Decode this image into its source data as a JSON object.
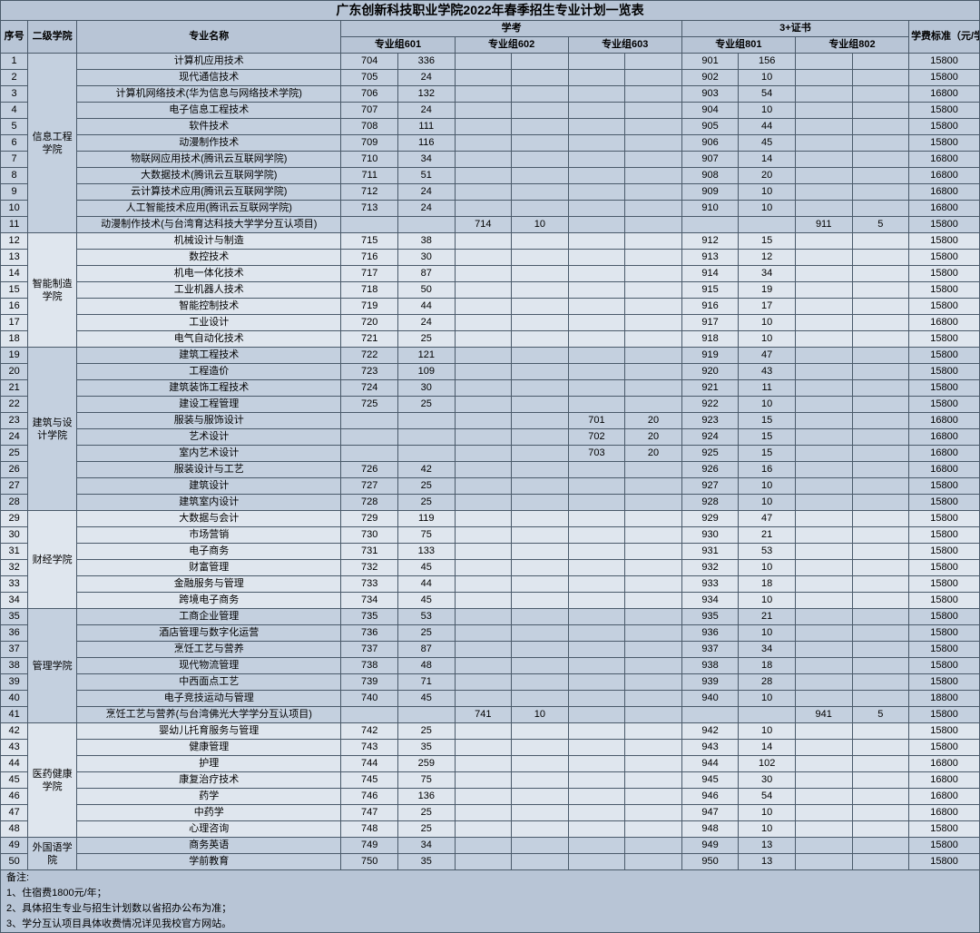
{
  "title": "广东创新科技职业学院2022年春季招生专业计划一览表",
  "headers": {
    "seq": "序号",
    "college": "二级学院",
    "major": "专业名称",
    "xuekao": "学考",
    "cert": "3+证书",
    "fee": "学费标准（元/学年）",
    "g601": "专业组601",
    "g602": "专业组602",
    "g603": "专业组603",
    "g801": "专业组801",
    "g802": "专业组802"
  },
  "colleges": [
    {
      "name": "信息工程学院",
      "shade": "shade-a",
      "rows": [
        {
          "n": "1",
          "m": "计算机应用技术",
          "a": "704",
          "b": "336",
          "c": "",
          "d": "",
          "e": "",
          "f": "",
          "g": "901",
          "h": "156",
          "i": "",
          "j": "",
          "fee": "15800"
        },
        {
          "n": "2",
          "m": "现代通信技术",
          "a": "705",
          "b": "24",
          "c": "",
          "d": "",
          "e": "",
          "f": "",
          "g": "902",
          "h": "10",
          "i": "",
          "j": "",
          "fee": "15800"
        },
        {
          "n": "3",
          "m": "计算机网络技术(华为信息与网络技术学院)",
          "a": "706",
          "b": "132",
          "c": "",
          "d": "",
          "e": "",
          "f": "",
          "g": "903",
          "h": "54",
          "i": "",
          "j": "",
          "fee": "16800"
        },
        {
          "n": "4",
          "m": "电子信息工程技术",
          "a": "707",
          "b": "24",
          "c": "",
          "d": "",
          "e": "",
          "f": "",
          "g": "904",
          "h": "10",
          "i": "",
          "j": "",
          "fee": "15800"
        },
        {
          "n": "5",
          "m": "软件技术",
          "a": "708",
          "b": "111",
          "c": "",
          "d": "",
          "e": "",
          "f": "",
          "g": "905",
          "h": "44",
          "i": "",
          "j": "",
          "fee": "15800"
        },
        {
          "n": "6",
          "m": "动漫制作技术",
          "a": "709",
          "b": "116",
          "c": "",
          "d": "",
          "e": "",
          "f": "",
          "g": "906",
          "h": "45",
          "i": "",
          "j": "",
          "fee": "15800"
        },
        {
          "n": "7",
          "m": "物联网应用技术(腾讯云互联网学院)",
          "a": "710",
          "b": "34",
          "c": "",
          "d": "",
          "e": "",
          "f": "",
          "g": "907",
          "h": "14",
          "i": "",
          "j": "",
          "fee": "16800"
        },
        {
          "n": "8",
          "m": "大数据技术(腾讯云互联网学院)",
          "a": "711",
          "b": "51",
          "c": "",
          "d": "",
          "e": "",
          "f": "",
          "g": "908",
          "h": "20",
          "i": "",
          "j": "",
          "fee": "16800"
        },
        {
          "n": "9",
          "m": "云计算技术应用(腾讯云互联网学院)",
          "a": "712",
          "b": "24",
          "c": "",
          "d": "",
          "e": "",
          "f": "",
          "g": "909",
          "h": "10",
          "i": "",
          "j": "",
          "fee": "16800"
        },
        {
          "n": "10",
          "m": "人工智能技术应用(腾讯云互联网学院)",
          "a": "713",
          "b": "24",
          "c": "",
          "d": "",
          "e": "",
          "f": "",
          "g": "910",
          "h": "10",
          "i": "",
          "j": "",
          "fee": "16800"
        },
        {
          "n": "11",
          "m": "动漫制作技术(与台湾育达科技大学学分互认项目)",
          "a": "",
          "b": "",
          "c": "714",
          "d": "10",
          "e": "",
          "f": "",
          "g": "",
          "h": "",
          "i": "911",
          "j": "5",
          "fee": "15800"
        }
      ]
    },
    {
      "name": "智能制造学院",
      "shade": "shade-c",
      "rows": [
        {
          "n": "12",
          "m": "机械设计与制造",
          "a": "715",
          "b": "38",
          "c": "",
          "d": "",
          "e": "",
          "f": "",
          "g": "912",
          "h": "15",
          "i": "",
          "j": "",
          "fee": "15800"
        },
        {
          "n": "13",
          "m": "数控技术",
          "a": "716",
          "b": "30",
          "c": "",
          "d": "",
          "e": "",
          "f": "",
          "g": "913",
          "h": "12",
          "i": "",
          "j": "",
          "fee": "15800"
        },
        {
          "n": "14",
          "m": "机电一体化技术",
          "a": "717",
          "b": "87",
          "c": "",
          "d": "",
          "e": "",
          "f": "",
          "g": "914",
          "h": "34",
          "i": "",
          "j": "",
          "fee": "15800"
        },
        {
          "n": "15",
          "m": "工业机器人技术",
          "a": "718",
          "b": "50",
          "c": "",
          "d": "",
          "e": "",
          "f": "",
          "g": "915",
          "h": "19",
          "i": "",
          "j": "",
          "fee": "15800"
        },
        {
          "n": "16",
          "m": "智能控制技术",
          "a": "719",
          "b": "44",
          "c": "",
          "d": "",
          "e": "",
          "f": "",
          "g": "916",
          "h": "17",
          "i": "",
          "j": "",
          "fee": "15800"
        },
        {
          "n": "17",
          "m": "工业设计",
          "a": "720",
          "b": "24",
          "c": "",
          "d": "",
          "e": "",
          "f": "",
          "g": "917",
          "h": "10",
          "i": "",
          "j": "",
          "fee": "16800"
        },
        {
          "n": "18",
          "m": "电气自动化技术",
          "a": "721",
          "b": "25",
          "c": "",
          "d": "",
          "e": "",
          "f": "",
          "g": "918",
          "h": "10",
          "i": "",
          "j": "",
          "fee": "15800"
        }
      ]
    },
    {
      "name": "建筑与设计学院",
      "shade": "shade-a",
      "rows": [
        {
          "n": "19",
          "m": "建筑工程技术",
          "a": "722",
          "b": "121",
          "c": "",
          "d": "",
          "e": "",
          "f": "",
          "g": "919",
          "h": "47",
          "i": "",
          "j": "",
          "fee": "15800"
        },
        {
          "n": "20",
          "m": "工程造价",
          "a": "723",
          "b": "109",
          "c": "",
          "d": "",
          "e": "",
          "f": "",
          "g": "920",
          "h": "43",
          "i": "",
          "j": "",
          "fee": "15800"
        },
        {
          "n": "21",
          "m": "建筑装饰工程技术",
          "a": "724",
          "b": "30",
          "c": "",
          "d": "",
          "e": "",
          "f": "",
          "g": "921",
          "h": "11",
          "i": "",
          "j": "",
          "fee": "15800"
        },
        {
          "n": "22",
          "m": "建设工程管理",
          "a": "725",
          "b": "25",
          "c": "",
          "d": "",
          "e": "",
          "f": "",
          "g": "922",
          "h": "10",
          "i": "",
          "j": "",
          "fee": "15800"
        },
        {
          "n": "23",
          "m": "服装与服饰设计",
          "a": "",
          "b": "",
          "c": "",
          "d": "",
          "e": "701",
          "f": "20",
          "g": "923",
          "h": "15",
          "i": "",
          "j": "",
          "fee": "16800"
        },
        {
          "n": "24",
          "m": "艺术设计",
          "a": "",
          "b": "",
          "c": "",
          "d": "",
          "e": "702",
          "f": "20",
          "g": "924",
          "h": "15",
          "i": "",
          "j": "",
          "fee": "16800"
        },
        {
          "n": "25",
          "m": "室内艺术设计",
          "a": "",
          "b": "",
          "c": "",
          "d": "",
          "e": "703",
          "f": "20",
          "g": "925",
          "h": "15",
          "i": "",
          "j": "",
          "fee": "16800"
        },
        {
          "n": "26",
          "m": "服装设计与工艺",
          "a": "726",
          "b": "42",
          "c": "",
          "d": "",
          "e": "",
          "f": "",
          "g": "926",
          "h": "16",
          "i": "",
          "j": "",
          "fee": "16800"
        },
        {
          "n": "27",
          "m": "建筑设计",
          "a": "727",
          "b": "25",
          "c": "",
          "d": "",
          "e": "",
          "f": "",
          "g": "927",
          "h": "10",
          "i": "",
          "j": "",
          "fee": "15800"
        },
        {
          "n": "28",
          "m": "建筑室内设计",
          "a": "728",
          "b": "25",
          "c": "",
          "d": "",
          "e": "",
          "f": "",
          "g": "928",
          "h": "10",
          "i": "",
          "j": "",
          "fee": "15800"
        }
      ]
    },
    {
      "name": "财经学院",
      "shade": "shade-c",
      "rows": [
        {
          "n": "29",
          "m": "大数据与会计",
          "a": "729",
          "b": "119",
          "c": "",
          "d": "",
          "e": "",
          "f": "",
          "g": "929",
          "h": "47",
          "i": "",
          "j": "",
          "fee": "15800"
        },
        {
          "n": "30",
          "m": "市场营销",
          "a": "730",
          "b": "75",
          "c": "",
          "d": "",
          "e": "",
          "f": "",
          "g": "930",
          "h": "21",
          "i": "",
          "j": "",
          "fee": "15800"
        },
        {
          "n": "31",
          "m": "电子商务",
          "a": "731",
          "b": "133",
          "c": "",
          "d": "",
          "e": "",
          "f": "",
          "g": "931",
          "h": "53",
          "i": "",
          "j": "",
          "fee": "15800"
        },
        {
          "n": "32",
          "m": "财富管理",
          "a": "732",
          "b": "45",
          "c": "",
          "d": "",
          "e": "",
          "f": "",
          "g": "932",
          "h": "10",
          "i": "",
          "j": "",
          "fee": "15800"
        },
        {
          "n": "33",
          "m": "金融服务与管理",
          "a": "733",
          "b": "44",
          "c": "",
          "d": "",
          "e": "",
          "f": "",
          "g": "933",
          "h": "18",
          "i": "",
          "j": "",
          "fee": "15800"
        },
        {
          "n": "34",
          "m": "跨境电子商务",
          "a": "734",
          "b": "45",
          "c": "",
          "d": "",
          "e": "",
          "f": "",
          "g": "934",
          "h": "10",
          "i": "",
          "j": "",
          "fee": "15800"
        }
      ]
    },
    {
      "name": "管理学院",
      "shade": "shade-a",
      "rows": [
        {
          "n": "35",
          "m": "工商企业管理",
          "a": "735",
          "b": "53",
          "c": "",
          "d": "",
          "e": "",
          "f": "",
          "g": "935",
          "h": "21",
          "i": "",
          "j": "",
          "fee": "15800"
        },
        {
          "n": "36",
          "m": "酒店管理与数字化运营",
          "a": "736",
          "b": "25",
          "c": "",
          "d": "",
          "e": "",
          "f": "",
          "g": "936",
          "h": "10",
          "i": "",
          "j": "",
          "fee": "15800"
        },
        {
          "n": "37",
          "m": "烹饪工艺与营养",
          "a": "737",
          "b": "87",
          "c": "",
          "d": "",
          "e": "",
          "f": "",
          "g": "937",
          "h": "34",
          "i": "",
          "j": "",
          "fee": "15800"
        },
        {
          "n": "38",
          "m": "现代物流管理",
          "a": "738",
          "b": "48",
          "c": "",
          "d": "",
          "e": "",
          "f": "",
          "g": "938",
          "h": "18",
          "i": "",
          "j": "",
          "fee": "15800"
        },
        {
          "n": "39",
          "m": "中西面点工艺",
          "a": "739",
          "b": "71",
          "c": "",
          "d": "",
          "e": "",
          "f": "",
          "g": "939",
          "h": "28",
          "i": "",
          "j": "",
          "fee": "15800"
        },
        {
          "n": "40",
          "m": "电子竞技运动与管理",
          "a": "740",
          "b": "45",
          "c": "",
          "d": "",
          "e": "",
          "f": "",
          "g": "940",
          "h": "10",
          "i": "",
          "j": "",
          "fee": "18800"
        },
        {
          "n": "41",
          "m": "烹饪工艺与营养(与台湾佛光大学学分互认项目)",
          "a": "",
          "b": "",
          "c": "741",
          "d": "10",
          "e": "",
          "f": "",
          "g": "",
          "h": "",
          "i": "941",
          "j": "5",
          "fee": "15800"
        }
      ]
    },
    {
      "name": "医药健康学院",
      "shade": "shade-c",
      "rows": [
        {
          "n": "42",
          "m": "婴幼儿托育服务与管理",
          "a": "742",
          "b": "25",
          "c": "",
          "d": "",
          "e": "",
          "f": "",
          "g": "942",
          "h": "10",
          "i": "",
          "j": "",
          "fee": "15800"
        },
        {
          "n": "43",
          "m": "健康管理",
          "a": "743",
          "b": "35",
          "c": "",
          "d": "",
          "e": "",
          "f": "",
          "g": "943",
          "h": "14",
          "i": "",
          "j": "",
          "fee": "15800"
        },
        {
          "n": "44",
          "m": "护理",
          "a": "744",
          "b": "259",
          "c": "",
          "d": "",
          "e": "",
          "f": "",
          "g": "944",
          "h": "102",
          "i": "",
          "j": "",
          "fee": "16800"
        },
        {
          "n": "45",
          "m": "康复治疗技术",
          "a": "745",
          "b": "75",
          "c": "",
          "d": "",
          "e": "",
          "f": "",
          "g": "945",
          "h": "30",
          "i": "",
          "j": "",
          "fee": "16800"
        },
        {
          "n": "46",
          "m": "药学",
          "a": "746",
          "b": "136",
          "c": "",
          "d": "",
          "e": "",
          "f": "",
          "g": "946",
          "h": "54",
          "i": "",
          "j": "",
          "fee": "16800"
        },
        {
          "n": "47",
          "m": "中药学",
          "a": "747",
          "b": "25",
          "c": "",
          "d": "",
          "e": "",
          "f": "",
          "g": "947",
          "h": "10",
          "i": "",
          "j": "",
          "fee": "16800"
        },
        {
          "n": "48",
          "m": "心理咨询",
          "a": "748",
          "b": "25",
          "c": "",
          "d": "",
          "e": "",
          "f": "",
          "g": "948",
          "h": "10",
          "i": "",
          "j": "",
          "fee": "15800"
        }
      ]
    },
    {
      "name": "外国语学院",
      "shade": "shade-a",
      "rows": [
        {
          "n": "49",
          "m": "商务英语",
          "a": "749",
          "b": "34",
          "c": "",
          "d": "",
          "e": "",
          "f": "",
          "g": "949",
          "h": "13",
          "i": "",
          "j": "",
          "fee": "15800"
        },
        {
          "n": "50",
          "m": "学前教育",
          "a": "750",
          "b": "35",
          "c": "",
          "d": "",
          "e": "",
          "f": "",
          "g": "950",
          "h": "13",
          "i": "",
          "j": "",
          "fee": "15800"
        }
      ]
    }
  ],
  "notes": [
    "备注:",
    "1、住宿费1800元/年；",
    "2、具体招生专业与招生计划数以省招办公布为准；",
    "3、学分互认项目具体收费情况详见我校官方网站。"
  ],
  "style": {
    "border_color": "#4a5a6a",
    "bg": "#b8c5d6",
    "shade_a": "#c4d0df",
    "shade_b": "#d5dde8",
    "shade_c": "#dfe6ee"
  }
}
